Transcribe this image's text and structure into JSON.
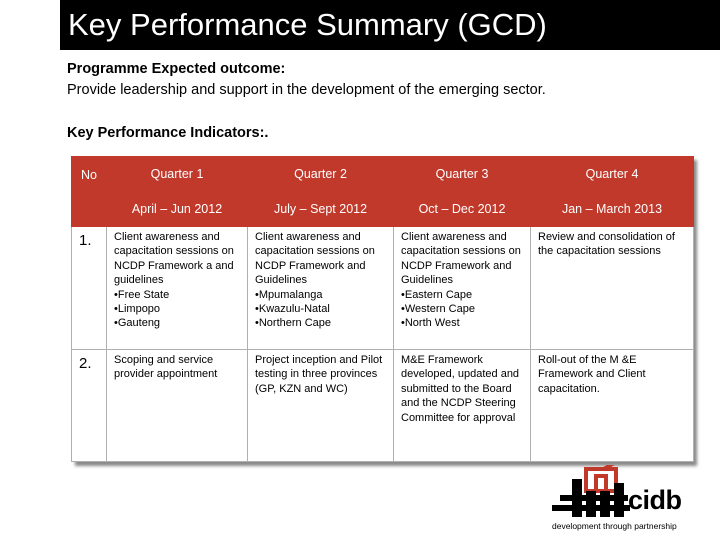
{
  "slide": {
    "title": "Key Performance Summary (GCD)",
    "outcome_heading": "Programme Expected outcome:",
    "outcome_text": "Provide leadership and support in the development of the emerging sector.",
    "kpi_heading": "Key Performance Indicators:."
  },
  "table": {
    "header_no": "No",
    "quarters": [
      "Quarter 1",
      "Quarter 2",
      "Quarter 3",
      "Quarter 4"
    ],
    "periods": [
      "April – Jun 2012",
      "July – Sept 2012",
      "Oct – Dec 2012",
      "Jan  – March 2013"
    ],
    "rows": [
      {
        "no": "1.",
        "cells": [
          [
            "Client awareness and capacitation sessions on NCDP Framework a and guidelines",
            "•Free State",
            "•Limpopo",
            "•Gauteng"
          ],
          [
            "Client awareness and capacitation sessions on NCDP Framework and Guidelines",
            "•Mpumalanga",
            "•Kwazulu-Natal",
            "•Northern Cape"
          ],
          [
            "Client awareness and capacitation sessions on NCDP Framework and Guidelines",
            "•Eastern Cape",
            "•Western Cape",
            "•North West"
          ],
          [
            "Review and consolidation of the capacitation  sessions"
          ]
        ]
      },
      {
        "no": "2.",
        "cells": [
          [
            "Scoping and service provider appointment"
          ],
          [
            "Project inception and Pilot testing in three provinces (GP, KZN and WC)"
          ],
          [
            "M&E Framework developed, updated and submitted to the Board and the NCDP Steering Committee for approval"
          ],
          [
            "Roll-out of the M &E Framework and Client capacitation."
          ]
        ]
      }
    ]
  },
  "logo": {
    "name": "cidb",
    "tagline": "development through partnership",
    "icon": "cidb-bar-logo-icon",
    "accent_color": "#c0392b"
  },
  "colors": {
    "title_bar": "#000000",
    "header_fill": "#c0392b"
  }
}
